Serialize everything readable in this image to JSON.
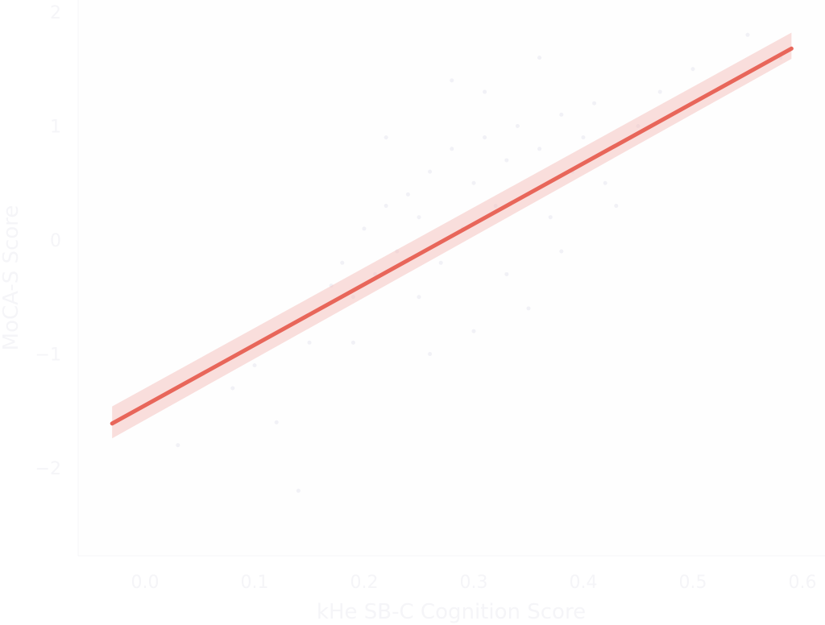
{
  "chart_data": {
    "type": "scatter",
    "title": "",
    "xlabel": "kHe SB-C Cognition Score",
    "ylabel": "MoCA-S Score",
    "xlim": [
      -0.06,
      0.62
    ],
    "ylim": [
      -2.8,
      2.1
    ],
    "xticks": [
      0.0,
      0.1,
      0.2,
      0.3,
      0.4,
      0.5,
      0.6
    ],
    "xtick_labels": [
      "0.0",
      "0.1",
      "0.2",
      "0.3",
      "0.4",
      "0.5",
      "0.6"
    ],
    "yticks": [
      -2,
      -1,
      0,
      1,
      2
    ],
    "ytick_labels": [
      "−2",
      "−1",
      "0",
      "1",
      "2"
    ],
    "grid": false,
    "series": [
      {
        "kind": "points",
        "color": "#e8e8f0",
        "x": [
          0.08,
          0.12,
          0.14,
          0.15,
          0.16,
          0.17,
          0.18,
          0.19,
          0.2,
          0.21,
          0.22,
          0.23,
          0.24,
          0.25,
          0.26,
          0.27,
          0.28,
          0.29,
          0.3,
          0.31,
          0.32,
          0.33,
          0.34,
          0.35,
          0.36,
          0.37,
          0.38,
          0.39,
          0.4,
          0.41,
          0.42,
          0.43,
          0.45,
          0.47,
          0.5,
          0.55,
          0.58,
          0.03,
          0.1,
          0.25,
          0.3,
          0.35,
          0.28,
          0.22,
          0.33,
          0.38,
          0.26,
          0.19,
          0.31,
          0.36
        ],
        "y": [
          -1.3,
          -1.6,
          -2.2,
          -0.9,
          -0.6,
          -0.4,
          -0.2,
          -0.5,
          0.1,
          -0.3,
          0.3,
          -0.1,
          0.4,
          0.2,
          0.6,
          -0.2,
          0.8,
          0.1,
          0.5,
          0.9,
          0.3,
          0.7,
          1.0,
          0.4,
          0.8,
          0.2,
          1.1,
          0.6,
          0.9,
          1.2,
          0.5,
          0.3,
          1.0,
          1.3,
          1.5,
          1.8,
          1.6,
          -1.8,
          -1.1,
          -0.5,
          -0.8,
          -0.6,
          1.4,
          0.9,
          -0.3,
          -0.1,
          -1.0,
          -0.9,
          1.3,
          1.6
        ]
      },
      {
        "kind": "regression",
        "color": "#e8665a",
        "band_color": "#f5b8b4",
        "x": [
          -0.03,
          0.59
        ],
        "y": [
          -1.61,
          1.68
        ],
        "ci_lower": [
          -1.74,
          1.59
        ],
        "ci_upper": [
          -1.46,
          1.82
        ]
      }
    ]
  }
}
